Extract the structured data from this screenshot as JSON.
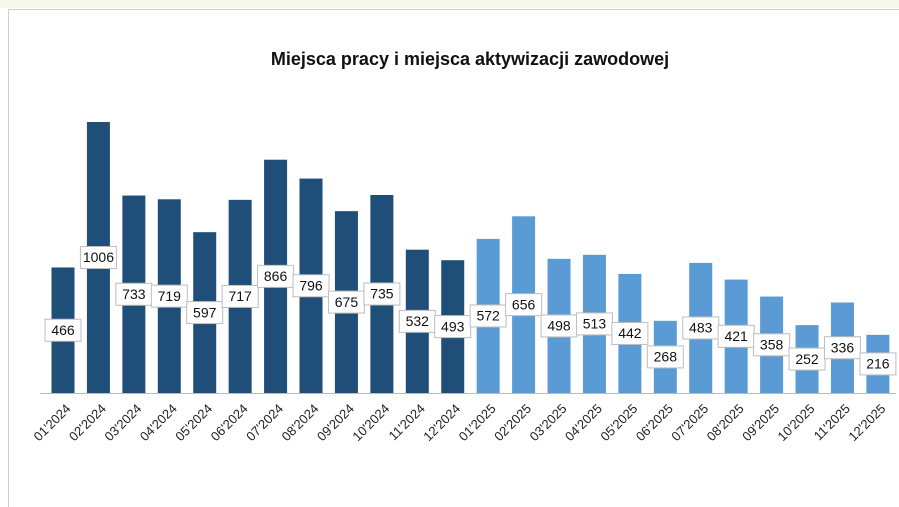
{
  "chart_data": {
    "type": "bar",
    "title": "Miejsca pracy i miejsca aktywizacji zawodowej",
    "categories": [
      "01'2024",
      "02'2024",
      "03'2024",
      "04'2024",
      "05'2024",
      "06'2024",
      "07'2024",
      "08'2024",
      "09'2024",
      "10'2024",
      "11'2024",
      "12'2024",
      "01'2025",
      "02'2025",
      "03'2025",
      "04'2025",
      "05'2025",
      "06'2025",
      "07'2025",
      "08'2025",
      "09'2025",
      "10'2025",
      "11'2025",
      "12'2025"
    ],
    "values": [
      466,
      1006,
      733,
      719,
      597,
      717,
      866,
      796,
      675,
      735,
      532,
      493,
      572,
      656,
      498,
      513,
      442,
      268,
      483,
      421,
      358,
      252,
      336,
      216
    ],
    "colors": [
      "#1f4e79",
      "#1f4e79",
      "#1f4e79",
      "#1f4e79",
      "#1f4e79",
      "#1f4e79",
      "#1f4e79",
      "#1f4e79",
      "#1f4e79",
      "#1f4e79",
      "#1f4e79",
      "#1f4e79",
      "#5b9bd5",
      "#5b9bd5",
      "#5b9bd5",
      "#5b9bd5",
      "#5b9bd5",
      "#5b9bd5",
      "#5b9bd5",
      "#5b9bd5",
      "#5b9bd5",
      "#5b9bd5",
      "#5b9bd5",
      "#5b9bd5"
    ]
  }
}
